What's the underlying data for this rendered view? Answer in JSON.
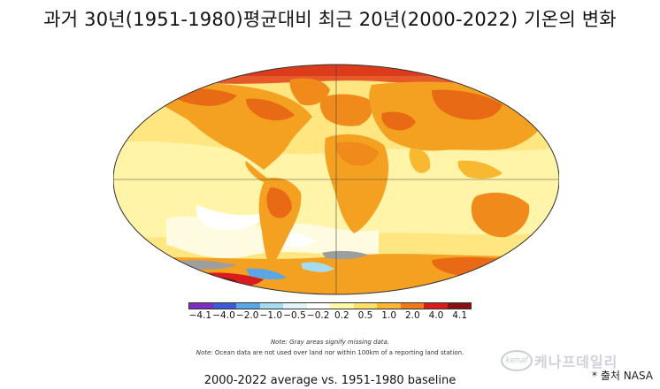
{
  "title": "과거 30년(1951-1980)평균대비 최근 20년(2000-2022) 기온의 변화",
  "legend": {
    "ticks": [
      "−4.1",
      "−4.0",
      "−2.0",
      "−1.0",
      "−0.5",
      "−0.2",
      "0.2",
      "0.5",
      "1.0",
      "2.0",
      "4.0",
      "4.1"
    ],
    "colors": [
      "#7b2fbe",
      "#3d5bd6",
      "#5aa7e6",
      "#a6dcef",
      "#e3f4f8",
      "#ffffff",
      "#fff8a8",
      "#ffe066",
      "#ffb533",
      "#f07a1a",
      "#d81b1b",
      "#8a1010"
    ]
  },
  "notes": {
    "line1": "Note: Gray areas signify missing data.",
    "line2_lead": "Note:",
    "line2_rest": " Ocean data are not used over land nor within 100km of a reporting land station."
  },
  "caption": "2000-2022 average vs. 1951-1980 baseline",
  "source": "* 출처 NASA",
  "watermark": {
    "logo": "kenaf",
    "text": "케나프데일리"
  }
}
